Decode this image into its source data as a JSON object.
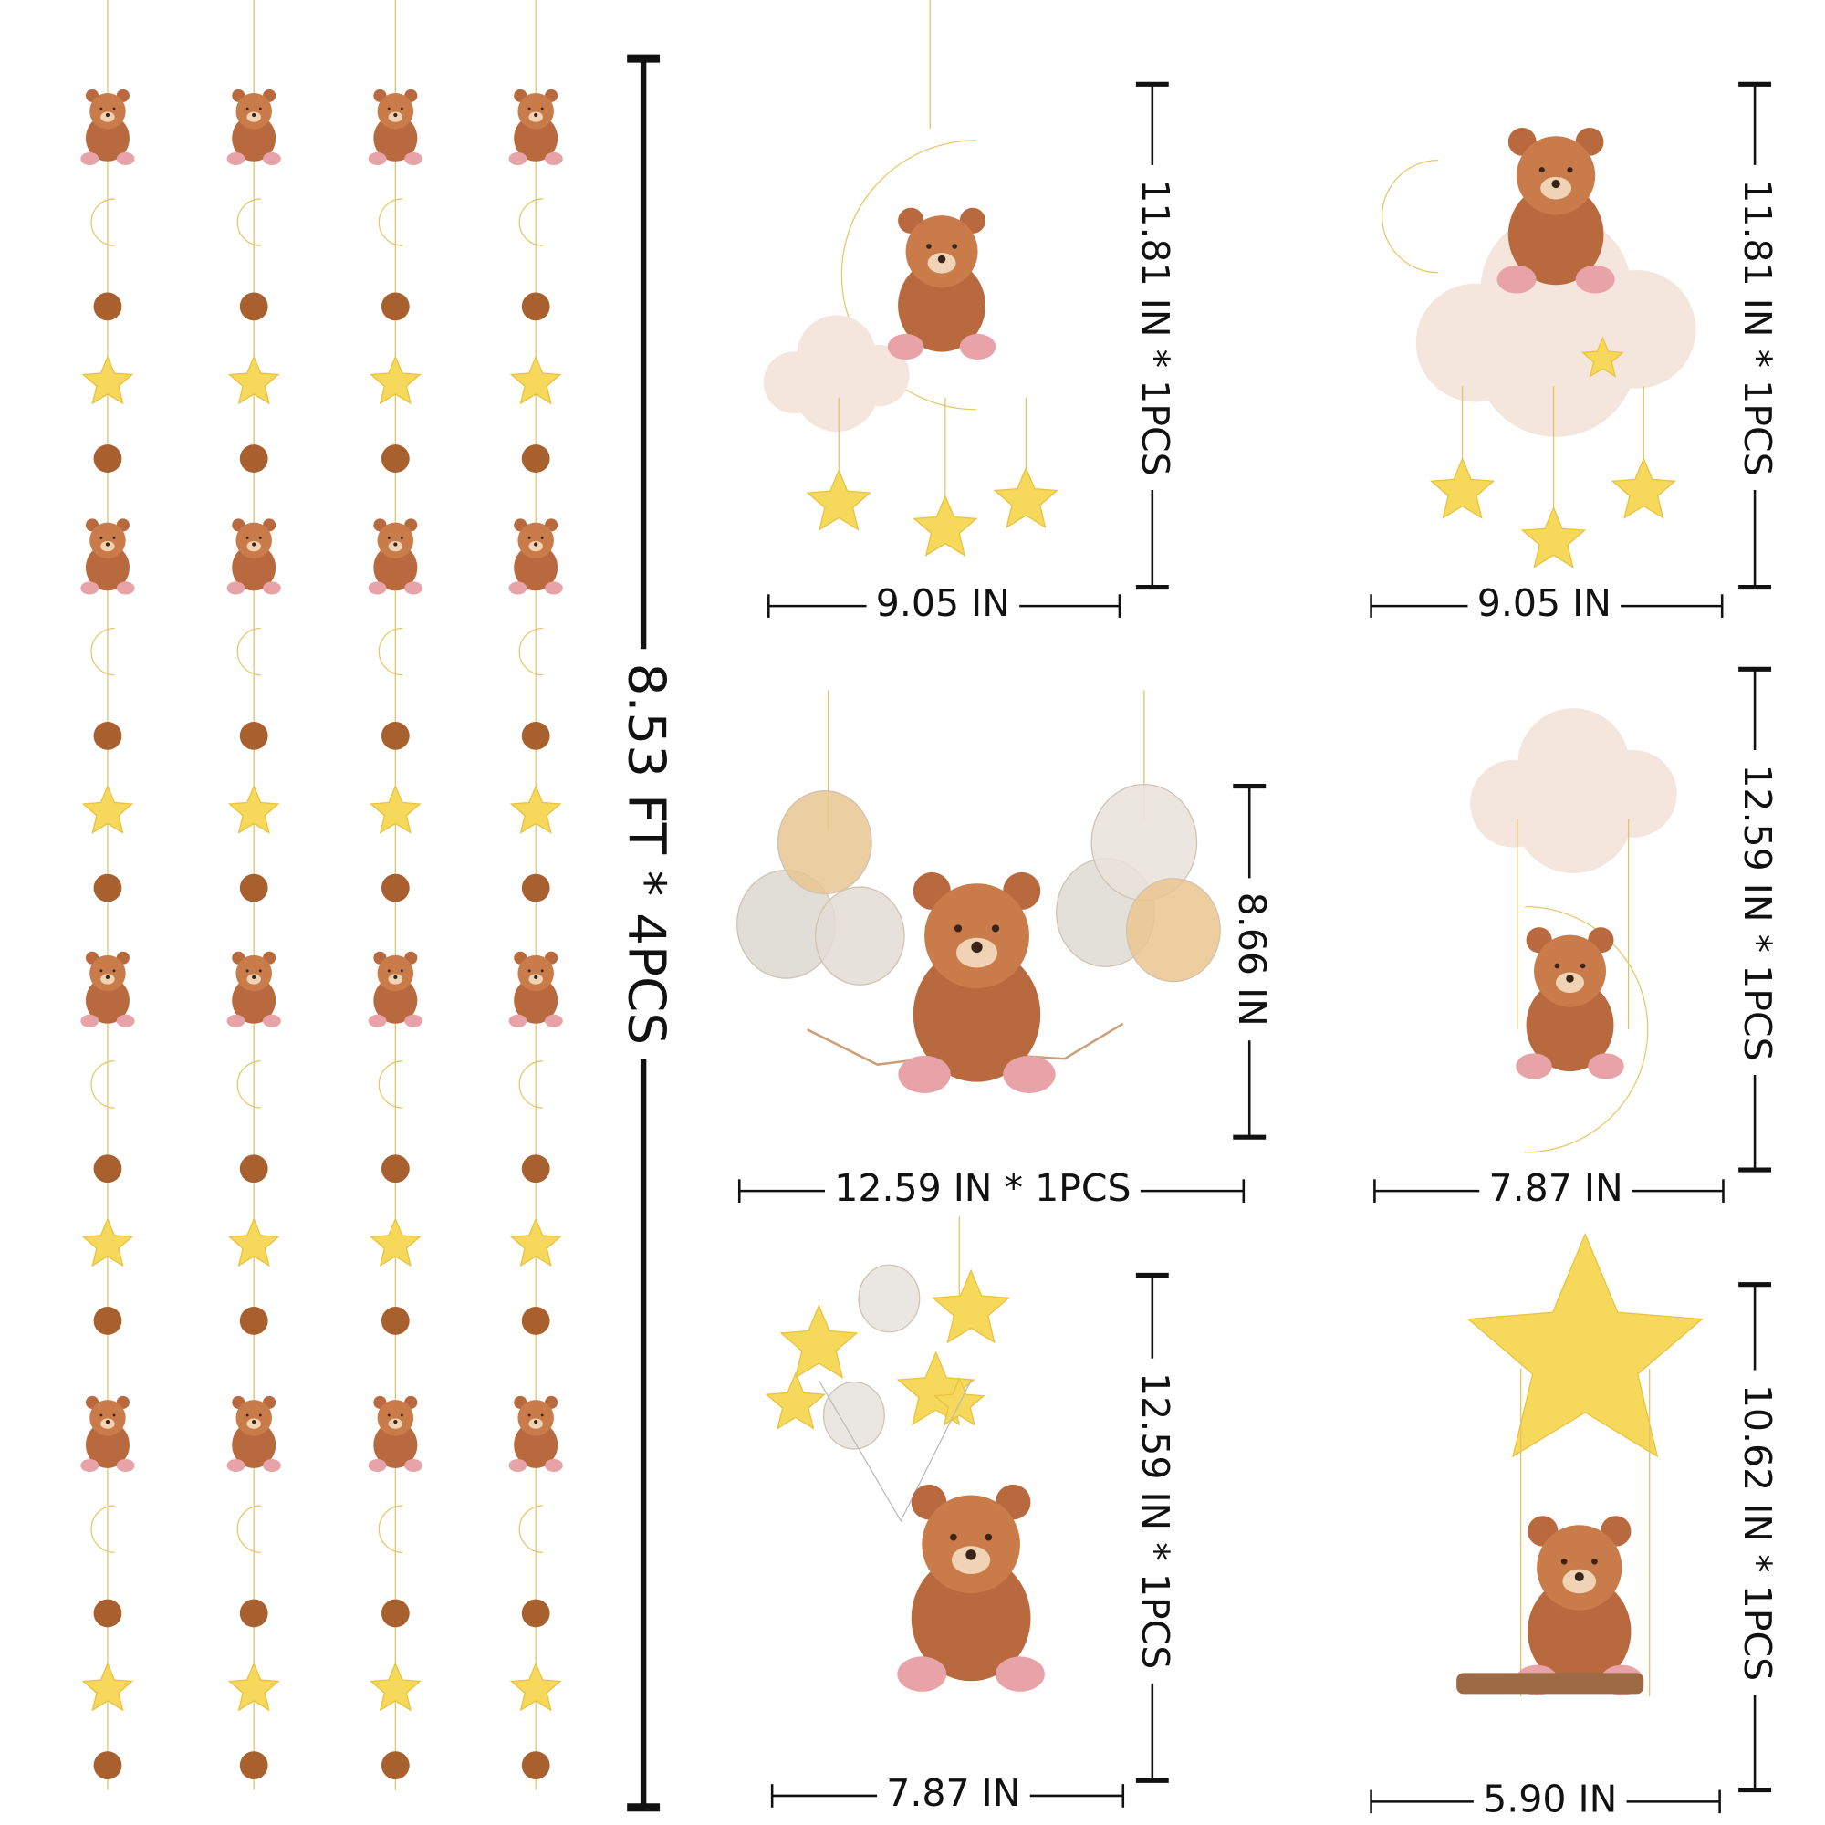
{
  "garland": {
    "label": "8.53 FT * 4PCS"
  },
  "panels": [
    {
      "height": "11.81 IN * 1PCS",
      "width": "9.05 IN"
    },
    {
      "height": "11.81 IN * 1PCS",
      "width": "9.05 IN"
    },
    {
      "height": "8.66 IN",
      "width": "12.59 IN * 1PCS"
    },
    {
      "height": "12.59 IN * 1PCS",
      "width": "7.87 IN"
    },
    {
      "height": "12.59 IN * 1PCS",
      "width": "7.87 IN"
    },
    {
      "height": "10.62 IN * 1PCS",
      "width": "5.90 IN"
    }
  ]
}
